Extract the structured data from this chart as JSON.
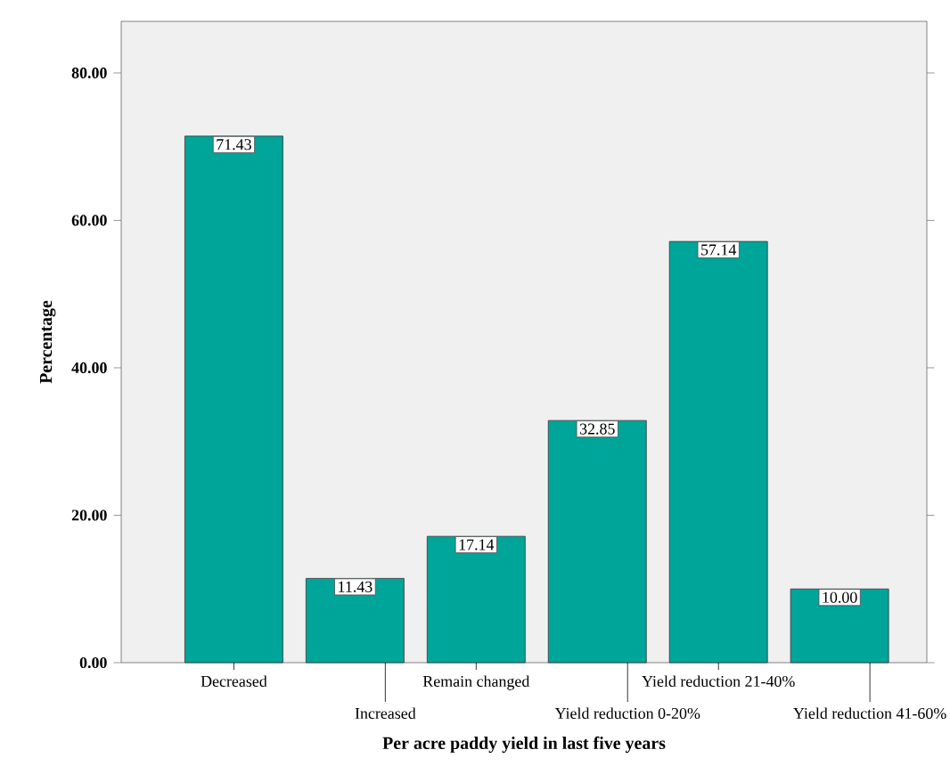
{
  "chart_data": {
    "type": "bar",
    "xlabel": "Per acre paddy yield in last five years",
    "ylabel": "Percentage",
    "categories": [
      "Decreased",
      "Increased",
      "Remain changed",
      "Yield reduction 0-20%",
      "Yield reduction 21-40%",
      "Yield reduction 41-60%"
    ],
    "values": [
      71.43,
      11.43,
      17.14,
      32.85,
      57.14,
      10.0
    ],
    "value_labels": [
      "71.43",
      "11.43",
      "17.14",
      "32.85",
      "57.14",
      "10.00"
    ],
    "color": "#00a59a",
    "ylim": [
      0,
      87
    ],
    "yticks": [
      {
        "value": 0,
        "label": "0.00"
      },
      {
        "value": 20,
        "label": "20.00"
      },
      {
        "value": 40,
        "label": "40.00"
      },
      {
        "value": 60,
        "label": "60.00"
      },
      {
        "value": 80,
        "label": "80.00"
      }
    ],
    "grid": false
  }
}
